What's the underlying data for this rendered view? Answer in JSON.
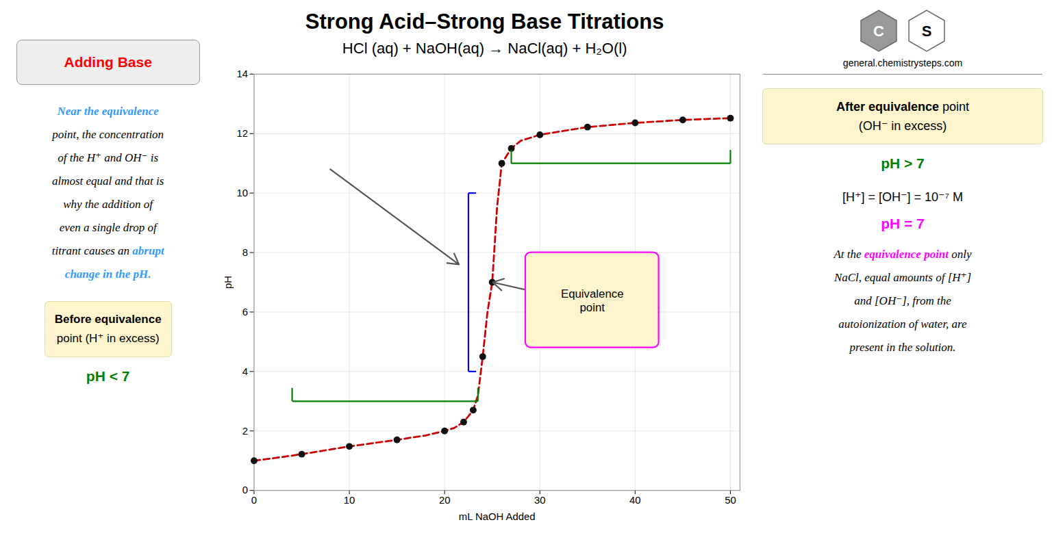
{
  "chart_data": {
    "type": "line",
    "title": "Strong Acid–Strong Base Titrations",
    "subtitle": "HCl (aq) + NaOH(aq) → NaCl(aq) + H₂O(l)",
    "x_label": "mL NaOH Added",
    "y_label": "pH",
    "xlim": [
      0,
      51
    ],
    "ylim": [
      0,
      14
    ],
    "xticks": [
      0,
      10,
      20,
      30,
      40,
      50
    ],
    "yticks": [
      0,
      2,
      4,
      6,
      8,
      10,
      12,
      14
    ],
    "grid": true,
    "series": [
      {
        "type": "line",
        "color": "#cc0000",
        "line_style": "dashed",
        "x": [
          0,
          2,
          5,
          10,
          15,
          18,
          20,
          21,
          22,
          23,
          23.5,
          24,
          24.5,
          25,
          25.5,
          26,
          27,
          28,
          30,
          35,
          40,
          45,
          50
        ],
        "values": [
          1.0,
          1.08,
          1.22,
          1.48,
          1.7,
          1.85,
          2.0,
          2.1,
          2.3,
          2.7,
          3.2,
          4.5,
          6.0,
          7.0,
          9.5,
          11.0,
          11.5,
          11.76,
          11.96,
          12.22,
          12.36,
          12.46,
          12.52
        ]
      },
      {
        "type": "scatter",
        "color": "#111111",
        "marker": "circle",
        "x": [
          0,
          5,
          10,
          15,
          20,
          22,
          23,
          24,
          25,
          26,
          27,
          30,
          35,
          40,
          45,
          50
        ],
        "values": [
          1.0,
          1.22,
          1.48,
          1.7,
          2.0,
          2.3,
          2.7,
          4.5,
          7.0,
          11.0,
          11.5,
          11.96,
          12.22,
          12.36,
          12.46,
          12.52
        ]
      }
    ],
    "annotations": [
      {
        "type": "bracket",
        "color": "blue",
        "x1": 22.5,
        "x2": 22.5,
        "y1": 4.0,
        "y2": 10.0
      },
      {
        "type": "bracket",
        "color": "green",
        "x1": 4.0,
        "x2": 23.5,
        "y1": 3.0,
        "y2": 3.0
      },
      {
        "type": "bracket",
        "color": "green",
        "x1": 27.0,
        "x2": 50.0,
        "y1": 11.0,
        "y2": 11.0
      },
      {
        "type": "arrow",
        "color": "#555555",
        "x1": 8,
        "y1": 10.8,
        "x2": 21.5,
        "y2": 7.6
      },
      {
        "type": "arrow",
        "color": "#555555",
        "x1": 32,
        "y1": 6.5,
        "x2": 25.05,
        "y2": 7.0
      },
      {
        "type": "label",
        "text": "Equivalence\npoint",
        "x": 35.5,
        "y": 6.4,
        "box": {
          "x1": 28.5,
          "x2": 42.5,
          "y1": 4.8,
          "y2": 8.0,
          "fill": "#fff5cc",
          "stroke": "magenta"
        }
      }
    ],
    "left_notes": [
      {
        "kind": "button",
        "box": "#eeeeee",
        "color": "red",
        "lines": [
          "Adding Base"
        ]
      },
      {
        "kind": "paragraph",
        "lines": [
          [
            {
              "text": "Near the equivalence",
              "color": "#3399ff",
              "bold": true
            }
          ],
          "point, the concentration",
          "of the H⁺ and OH⁻ is",
          "almost equal and that is",
          "why the addition of",
          "even a single drop of",
          [
            {
              "text": "titrant causes an "
            },
            {
              "text": "abrupt",
              "color": "#3399ff",
              "bold": true
            }
          ],
          [
            {
              "text": "change in the pH.",
              "color": "#3399ff",
              "bold": true
            }
          ]
        ]
      },
      {
        "kind": "box",
        "box": "#fff5cc",
        "lines": [
          [
            {
              "text": "Before equivalence",
              "bold": true
            }
          ],
          "point (H⁺ in excess)"
        ]
      },
      {
        "kind": "tag",
        "color": "green",
        "lines": [
          "pH < 7"
        ]
      }
    ],
    "logo": [
      "C",
      "S"
    ],
    "website": "general.chemistrysteps.com",
    "right_notes": [
      {
        "kind": "box",
        "box": "#fff5cc",
        "lines": [
          [
            {
              "text": "After equivalence",
              "bold": true
            },
            {
              "text": " point"
            }
          ],
          "(OH⁻ in excess)"
        ]
      },
      {
        "kind": "tag",
        "color": "green",
        "lines": [
          "pH > 7"
        ]
      },
      {
        "kind": "equation",
        "lines": [
          "[H⁺] = [OH⁻] = 10⁻⁷ M"
        ]
      },
      {
        "kind": "tag",
        "color": "magenta",
        "lines": [
          "pH = 7"
        ]
      },
      {
        "kind": "paragraph",
        "lines": [
          [
            {
              "text": "At the "
            },
            {
              "text": "equivalence point",
              "color": "magenta",
              "bold": true
            },
            {
              "text": " only"
            }
          ],
          "NaCl, equal amounts of [H⁺]",
          "and [OH⁻], from the",
          "autoionization of water, are",
          "present in the solution."
        ]
      }
    ]
  }
}
